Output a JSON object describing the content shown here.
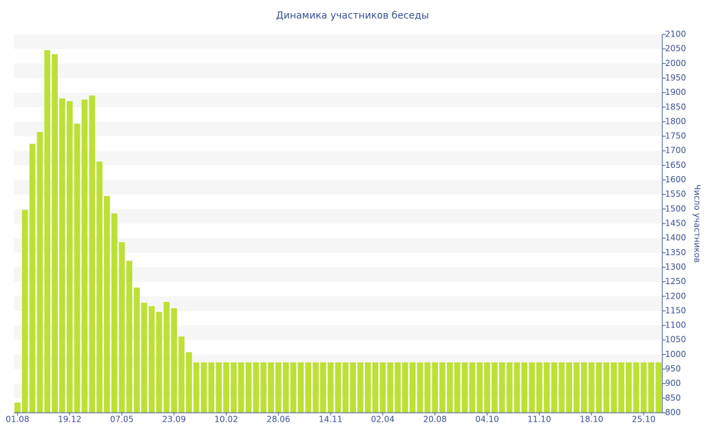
{
  "chart_data": {
    "type": "bar",
    "title": "Динамика участников беседы",
    "y_label": "Число участников",
    "categories": [
      "01.08",
      null,
      null,
      null,
      null,
      null,
      null,
      "19.12",
      null,
      null,
      null,
      null,
      null,
      null,
      "07.05",
      null,
      null,
      null,
      null,
      null,
      null,
      "23.09",
      null,
      null,
      null,
      null,
      null,
      null,
      "10.02",
      null,
      null,
      null,
      null,
      null,
      null,
      "28.06",
      null,
      null,
      null,
      null,
      null,
      null,
      "14.11",
      null,
      null,
      null,
      null,
      null,
      null,
      "02.04",
      null,
      null,
      null,
      null,
      null,
      null,
      "20.08",
      null,
      null,
      null,
      null,
      null,
      null,
      "04.10",
      null,
      null,
      null,
      null,
      null,
      null,
      "11.10",
      null,
      null,
      null,
      null,
      null,
      null,
      "18.10",
      null,
      null,
      null,
      null,
      null,
      null,
      "25.10",
      null,
      null
    ],
    "values": [
      835,
      1497,
      1724,
      1765,
      2046,
      2032,
      1880,
      1871,
      1793,
      1876,
      1890,
      1663,
      1545,
      1485,
      1386,
      1322,
      1230,
      1178,
      1166,
      1147,
      1181,
      1159,
      1062,
      1008,
      973,
      973,
      973,
      973,
      973,
      973,
      973,
      973,
      973,
      973,
      973,
      973,
      973,
      973,
      973,
      973,
      973,
      973,
      973,
      973,
      973,
      973,
      973,
      973,
      973,
      973,
      973,
      973,
      973,
      973,
      973,
      973,
      973,
      973,
      973,
      973,
      973,
      973,
      973,
      973,
      973,
      973,
      973,
      973,
      973,
      973,
      973,
      973,
      973,
      973,
      973,
      973,
      973,
      973,
      973,
      973,
      973,
      973,
      973,
      973,
      973,
      973,
      973
    ],
    "color": "#bde034",
    "ylim": [
      800,
      2100
    ],
    "yticks": [
      800,
      850,
      900,
      950,
      1000,
      1050,
      1100,
      1150,
      1200,
      1250,
      1300,
      1350,
      1400,
      1450,
      1500,
      1550,
      1600,
      1650,
      1700,
      1750,
      1800,
      1850,
      1900,
      1950,
      2000,
      2050,
      2100
    ],
    "grid": true
  }
}
